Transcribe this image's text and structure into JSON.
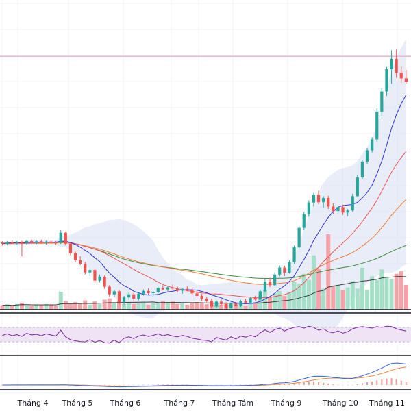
{
  "chart_data": {
    "type": "candlestick",
    "x_ticks": [
      "Tháng 4",
      "Tháng 5",
      "Tháng 6",
      "Tháng 7",
      "Tháng Tám",
      "Tháng 9",
      "Tháng 10",
      "Tháng 11"
    ],
    "colors": {
      "up": "#26a69a",
      "down": "#ef5350",
      "vol_up": "#a5dfc8",
      "vol_down": "#f5a3a8",
      "ma_fast": "#2f2fd6",
      "ma_mid": "#ef5350",
      "ma_slow": "#f07a3a",
      "ma_long": "#3d8b3d",
      "bollinger_fill": "#d7def0",
      "rsi_line": "#7b1fa2",
      "rsi_band": "#efe3f6",
      "macd": "#2f62e8",
      "signal": "#f0883a",
      "resistance": "#f2b6d0"
    },
    "candles": [
      [
        100.0,
        100.4,
        99.0,
        99.6
      ],
      [
        99.6,
        100.5,
        99.1,
        100.1
      ],
      [
        100.1,
        100.8,
        99.5,
        99.8
      ],
      [
        99.8,
        100.5,
        99.2,
        100.2
      ],
      [
        100.2,
        100.6,
        95.5,
        99.7
      ],
      [
        99.7,
        100.9,
        99.3,
        100.5
      ],
      [
        100.5,
        101.0,
        99.8,
        100.1
      ],
      [
        100.1,
        100.7,
        99.4,
        100.4
      ],
      [
        100.4,
        100.9,
        99.6,
        99.9
      ],
      [
        99.9,
        100.6,
        99.3,
        100.3
      ],
      [
        100.3,
        100.8,
        99.7,
        100.0
      ],
      [
        100.0,
        100.5,
        99.2,
        99.8
      ],
      [
        99.8,
        104.0,
        99.5,
        103.2
      ],
      [
        103.2,
        103.6,
        99.0,
        99.6
      ],
      [
        99.6,
        100.0,
        95.8,
        96.5
      ],
      [
        96.5,
        97.0,
        93.5,
        94.2
      ],
      [
        94.2,
        95.5,
        92.6,
        93.0
      ],
      [
        93.0,
        93.6,
        89.5,
        90.2
      ],
      [
        90.2,
        91.5,
        89.0,
        91.0
      ],
      [
        91.0,
        91.4,
        86.8,
        87.5
      ],
      [
        87.5,
        89.5,
        86.9,
        88.8
      ],
      [
        88.8,
        89.2,
        84.8,
        85.5
      ],
      [
        85.5,
        86.0,
        82.2,
        83.0
      ],
      [
        83.0,
        84.5,
        82.0,
        84.0
      ],
      [
        84.0,
        84.4,
        79.5,
        80.5
      ],
      [
        80.5,
        82.5,
        79.6,
        82.0
      ],
      [
        82.0,
        83.6,
        81.2,
        83.0
      ],
      [
        83.0,
        83.5,
        80.8,
        81.6
      ],
      [
        81.6,
        83.6,
        81.0,
        83.2
      ],
      [
        83.2,
        84.6,
        82.6,
        84.1
      ],
      [
        84.1,
        85.0,
        82.8,
        83.4
      ],
      [
        83.4,
        84.0,
        82.3,
        83.7
      ],
      [
        83.7,
        85.7,
        83.4,
        85.1
      ],
      [
        85.1,
        86.0,
        84.3,
        84.6
      ],
      [
        84.6,
        85.6,
        83.9,
        85.3
      ],
      [
        85.3,
        86.2,
        84.6,
        84.9
      ],
      [
        84.9,
        85.5,
        83.6,
        84.2
      ],
      [
        84.2,
        85.1,
        83.2,
        84.8
      ],
      [
        84.8,
        85.6,
        84.0,
        84.4
      ],
      [
        84.4,
        84.9,
        82.8,
        83.3
      ],
      [
        83.3,
        84.1,
        82.0,
        82.5
      ],
      [
        82.5,
        83.2,
        80.8,
        81.5
      ],
      [
        81.5,
        82.2,
        80.3,
        80.9
      ],
      [
        80.9,
        81.6,
        78.4,
        79.0
      ],
      [
        79.0,
        81.0,
        78.6,
        80.6
      ],
      [
        80.6,
        81.3,
        79.2,
        79.8
      ],
      [
        79.8,
        80.5,
        78.2,
        78.6
      ],
      [
        78.6,
        80.4,
        78.0,
        80.0
      ],
      [
        80.0,
        80.6,
        78.8,
        79.2
      ],
      [
        79.2,
        81.2,
        78.9,
        80.8
      ],
      [
        80.8,
        81.6,
        80.0,
        80.3
      ],
      [
        80.3,
        82.2,
        80.0,
        81.8
      ],
      [
        81.8,
        82.6,
        80.9,
        81.3
      ],
      [
        81.3,
        84.5,
        81.0,
        84.0
      ],
      [
        84.0,
        88.0,
        83.6,
        87.2
      ],
      [
        87.2,
        88.4,
        85.4,
        86.0
      ],
      [
        86.0,
        90.2,
        85.6,
        89.5
      ],
      [
        89.5,
        92.5,
        88.9,
        91.8
      ],
      [
        91.8,
        92.4,
        89.0,
        90.1
      ],
      [
        90.1,
        94.2,
        89.8,
        93.6
      ],
      [
        93.6,
        99.0,
        93.0,
        98.4
      ],
      [
        98.4,
        105.5,
        98.0,
        104.8
      ],
      [
        104.8,
        110.0,
        104.0,
        109.2
      ],
      [
        109.2,
        113.8,
        108.4,
        113.1
      ],
      [
        113.1,
        116.2,
        111.8,
        115.6
      ],
      [
        115.6,
        117.0,
        112.5,
        113.2
      ],
      [
        113.2,
        115.2,
        111.4,
        114.6
      ],
      [
        114.6,
        115.3,
        111.0,
        111.8
      ],
      [
        111.8,
        113.0,
        109.4,
        110.3
      ],
      [
        110.3,
        112.2,
        109.5,
        111.6
      ],
      [
        111.6,
        112.4,
        109.0,
        109.8
      ],
      [
        109.8,
        111.0,
        108.6,
        110.5
      ],
      [
        110.5,
        116.0,
        110.0,
        115.2
      ],
      [
        115.2,
        122.0,
        115.0,
        121.3
      ],
      [
        121.3,
        127.0,
        120.8,
        126.5
      ],
      [
        126.5,
        131.0,
        125.8,
        130.2
      ],
      [
        130.2,
        134.5,
        129.5,
        133.8
      ],
      [
        133.8,
        144.0,
        133.0,
        142.8
      ],
      [
        142.8,
        150.5,
        141.5,
        149.5
      ],
      [
        149.5,
        157.5,
        148.0,
        156.8
      ],
      [
        156.8,
        163.0,
        152.0,
        160.2
      ],
      [
        160.2,
        163.2,
        154.0,
        155.6
      ],
      [
        155.6,
        157.6,
        152.4,
        153.8
      ],
      [
        153.8,
        156.6,
        152.0,
        152.6
      ]
    ],
    "volume": [
      0.7,
      0.8,
      0.6,
      0.9,
      1.1,
      0.7,
      0.6,
      0.8,
      0.7,
      0.9,
      0.8,
      0.6,
      2.9,
      1.4,
      1.0,
      1.2,
      0.9,
      1.5,
      0.8,
      1.3,
      0.9,
      1.6,
      1.8,
      1.0,
      1.4,
      0.9,
      1.1,
      0.9,
      1.0,
      1.2,
      0.8,
      1.0,
      1.1,
      1.4,
      1.2,
      1.3,
      0.9,
      1.0,
      0.8,
      1.1,
      1.2,
      1.0,
      0.9,
      1.1,
      1.0,
      0.8,
      1.1,
      0.9,
      0.8,
      1.0,
      0.7,
      1.0,
      0.9,
      2.5,
      3.2,
      2.0,
      2.6,
      3.0,
      2.2,
      2.8,
      4.5,
      4.2,
      5.8,
      4.8,
      8.8,
      6.6,
      3.4,
      12.2,
      3.8,
      4.0,
      3.2,
      3.6,
      4.6,
      3.4,
      6.8,
      3.2,
      5.4,
      4.8,
      6.5,
      5.2,
      5.0,
      5.8,
      6.2,
      4.0
    ],
    "resistance_level": 161.0,
    "y_range": [
      78,
      166
    ],
    "rsi": [
      48,
      52,
      47,
      50,
      45,
      54,
      49,
      51,
      47,
      52,
      49,
      46,
      62,
      44,
      36,
      33,
      31,
      30,
      36,
      29,
      34,
      28,
      27,
      35,
      28,
      40,
      44,
      39,
      46,
      49,
      45,
      48,
      52,
      47,
      50,
      46,
      44,
      48,
      45,
      40,
      38,
      35,
      34,
      30,
      42,
      38,
      35,
      44,
      38,
      46,
      43,
      48,
      44,
      55,
      63,
      56,
      64,
      68,
      60,
      66,
      70,
      72,
      68,
      73,
      70,
      62,
      66,
      58,
      55,
      60,
      54,
      58,
      66,
      70,
      72,
      70,
      68,
      72,
      70,
      73,
      72,
      66,
      63,
      60
    ],
    "rsi_band": [
      30,
      70
    ],
    "macd": [
      0.0,
      0.0,
      0.05,
      0.1,
      0.05,
      0.1,
      0.1,
      0.08,
      0.06,
      0.1,
      0.08,
      0.05,
      0.25,
      0.15,
      -0.1,
      -0.35,
      -0.6,
      -0.9,
      -1.0,
      -1.3,
      -1.4,
      -1.7,
      -2.0,
      -2.0,
      -2.2,
      -2.1,
      -1.9,
      -1.9,
      -1.7,
      -1.4,
      -1.3,
      -1.1,
      -0.8,
      -0.7,
      -0.5,
      -0.4,
      -0.4,
      -0.3,
      -0.3,
      -0.4,
      -0.5,
      -0.7,
      -0.8,
      -1.0,
      -0.9,
      -0.9,
      -1.0,
      -0.8,
      -0.8,
      -0.6,
      -0.5,
      -0.3,
      -0.2,
      0.2,
      0.9,
      1.2,
      1.8,
      2.5,
      2.7,
      3.3,
      4.4,
      6.0,
      7.6,
      9.2,
      10.4,
      10.6,
      10.5,
      10.0,
      9.2,
      8.7,
      8.0,
      7.5,
      8.0,
      9.4,
      11.2,
      13.2,
      15.2,
      17.8,
      20.6,
      23.6,
      26.0,
      26.6,
      26.2,
      25.4
    ],
    "signal": [
      0.0,
      0.0,
      0.01,
      0.03,
      0.03,
      0.04,
      0.05,
      0.06,
      0.06,
      0.07,
      0.07,
      0.06,
      0.1,
      0.11,
      0.07,
      -0.01,
      -0.13,
      -0.28,
      -0.42,
      -0.6,
      -0.76,
      -0.95,
      -1.16,
      -1.33,
      -1.5,
      -1.62,
      -1.68,
      -1.72,
      -1.72,
      -1.66,
      -1.59,
      -1.49,
      -1.35,
      -1.22,
      -1.08,
      -0.94,
      -0.83,
      -0.72,
      -0.64,
      -0.59,
      -0.57,
      -0.6,
      -0.64,
      -0.71,
      -0.75,
      -0.78,
      -0.82,
      -0.82,
      -0.82,
      -0.78,
      -0.72,
      -0.64,
      -0.55,
      -0.4,
      -0.14,
      0.13,
      0.46,
      0.87,
      1.24,
      1.65,
      2.2,
      2.96,
      3.89,
      4.95,
      6.04,
      6.95,
      7.66,
      8.13,
      8.34,
      8.41,
      8.33,
      8.16,
      8.13,
      8.38,
      8.94,
      9.79,
      10.87,
      12.26,
      13.93,
      15.86,
      17.89,
      19.63,
      20.94,
      21.83
    ]
  }
}
